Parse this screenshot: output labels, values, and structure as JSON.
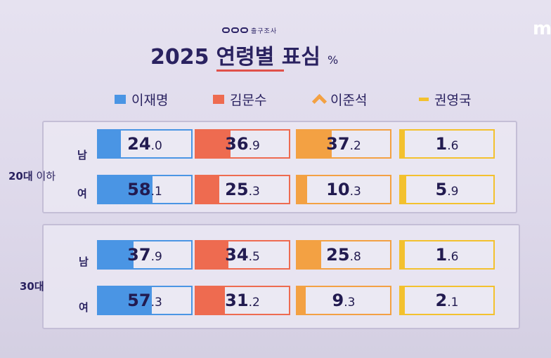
{
  "header": {
    "brand_sub": "출구조사",
    "title_year": "2025",
    "title_text": "연령별 표심",
    "title_unit": "%",
    "corner_logo": "m"
  },
  "colors": {
    "lee_jae_myung": "#4a95e4",
    "kim_moon_soo": "#ee6b50",
    "lee_jun_seok": "#f3a143",
    "kwon_young_guk": "#f3c12e"
  },
  "chart_data": {
    "type": "table",
    "title": "2025 연령별 표심",
    "unit": "%",
    "candidates": [
      "이재명",
      "김문수",
      "이준석",
      "권영국"
    ],
    "groups": [
      {
        "label_main": "20대",
        "label_suffix": " 이하",
        "rows": [
          {
            "gender": "남",
            "values": [
              24.0,
              36.9,
              37.2,
              1.6
            ]
          },
          {
            "gender": "여",
            "values": [
              58.1,
              25.3,
              10.3,
              5.9
            ]
          }
        ]
      },
      {
        "label_main": "30대",
        "label_suffix": "",
        "rows": [
          {
            "gender": "남",
            "values": [
              37.9,
              34.5,
              25.8,
              1.6
            ]
          },
          {
            "gender": "여",
            "values": [
              57.3,
              31.2,
              9.3,
              2.1
            ]
          }
        ]
      }
    ]
  }
}
